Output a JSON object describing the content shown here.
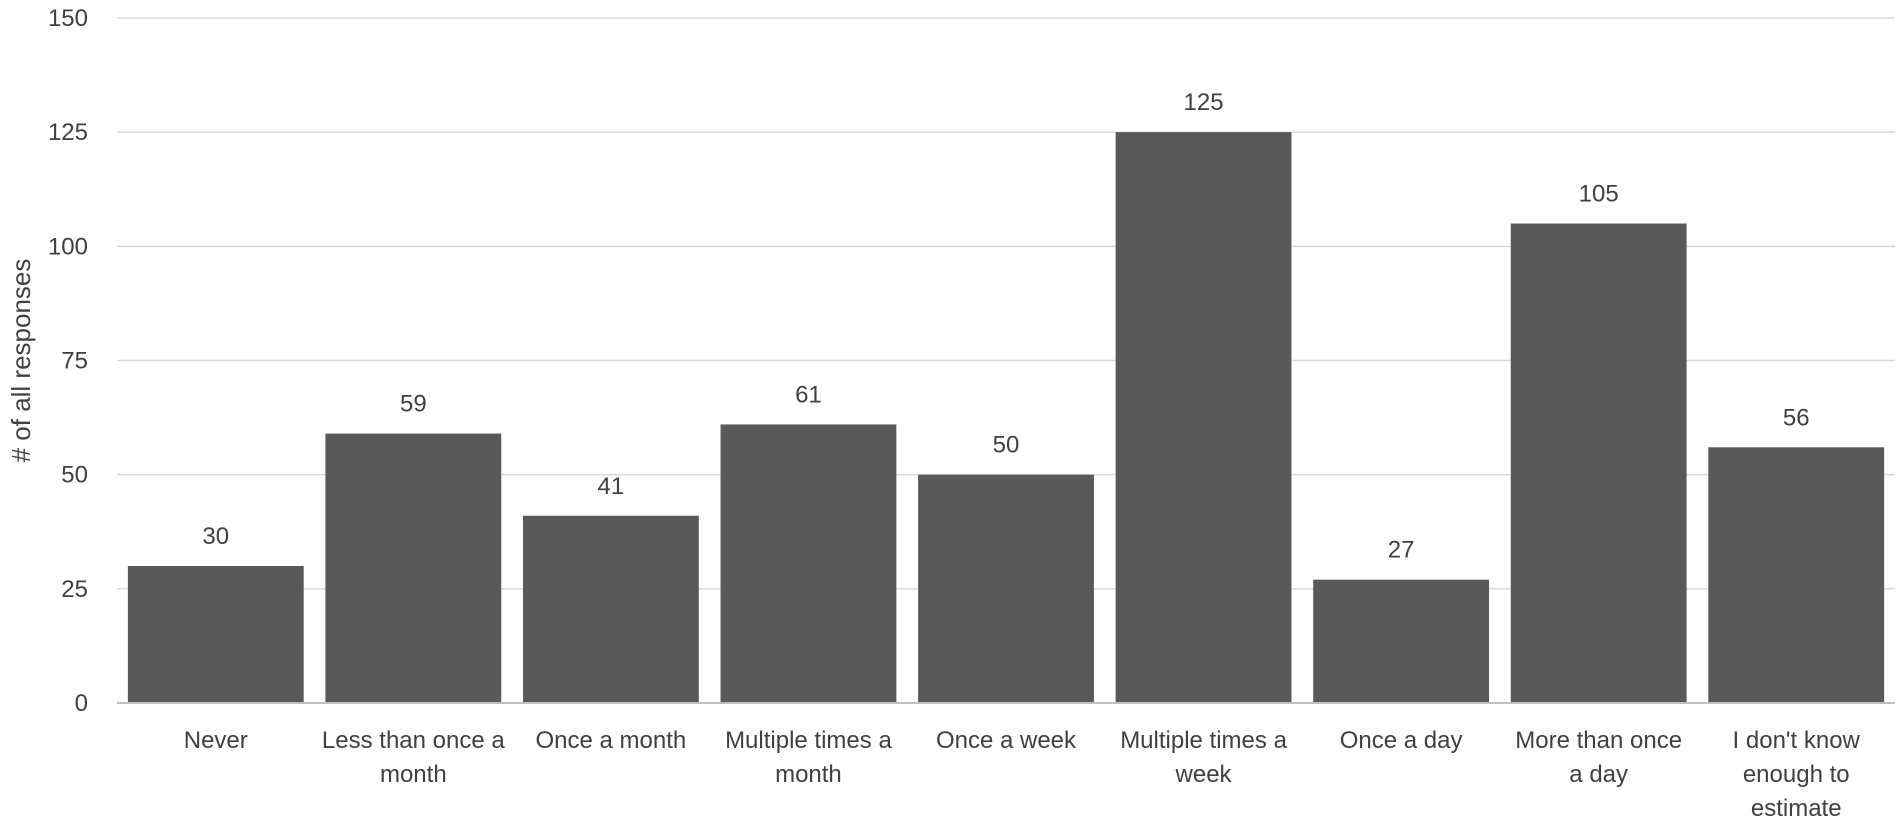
{
  "chart_data": {
    "type": "bar",
    "title": "",
    "xlabel": "",
    "ylabel": "# of all responses",
    "ylim": [
      0,
      150
    ],
    "yticks": [
      0,
      25,
      50,
      75,
      100,
      125,
      150
    ],
    "grid": true,
    "legend": "none",
    "bar_color": "#595959",
    "categories": [
      [
        "Never"
      ],
      [
        "Less than once a",
        "month"
      ],
      [
        "Once a month"
      ],
      [
        "Multiple times a",
        "month"
      ],
      [
        "Once a week"
      ],
      [
        "Multiple times a",
        "week"
      ],
      [
        "Once a day"
      ],
      [
        "More than once",
        "a day"
      ],
      [
        "I don't know",
        "enough to",
        "estimate"
      ]
    ],
    "values": [
      30,
      59,
      41,
      61,
      50,
      125,
      27,
      105,
      56
    ]
  }
}
